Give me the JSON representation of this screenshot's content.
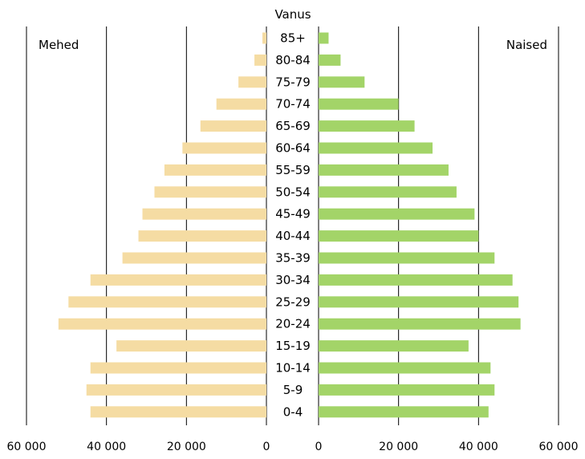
{
  "chart_data": {
    "type": "bar",
    "subtype": "population-pyramid",
    "age_axis_label": "Vanus",
    "categories": [
      "85+",
      "80-84",
      "75-79",
      "70-74",
      "65-69",
      "60-64",
      "55-59",
      "50-54",
      "45-49",
      "40-44",
      "35-39",
      "30-34",
      "25-29",
      "20-24",
      "15-19",
      "10-14",
      "5-9",
      "0-4"
    ],
    "series": [
      {
        "name": "Mehed",
        "side": "left",
        "color": "#f5dca3",
        "values": [
          1000,
          3000,
          7000,
          12500,
          16500,
          21000,
          25500,
          28000,
          31000,
          32000,
          36000,
          44000,
          49500,
          52000,
          37500,
          44000,
          45000,
          44000
        ]
      },
      {
        "name": "Naised",
        "side": "right",
        "color": "#a3d468",
        "values": [
          2500,
          5500,
          11500,
          20000,
          24000,
          28500,
          32500,
          34500,
          39000,
          40000,
          44000,
          48500,
          50000,
          50500,
          37500,
          43000,
          44000,
          42500
        ]
      }
    ],
    "xlim": [
      0,
      60000
    ],
    "x_ticks": [
      0,
      20000,
      40000,
      60000
    ],
    "x_tick_labels_left": [
      "60 000",
      "40 000",
      "20 000",
      "0"
    ],
    "x_tick_labels_right": [
      "0",
      "20 000",
      "40 000",
      "60 000"
    ],
    "grid": "vertical",
    "legend": "top-corners"
  }
}
